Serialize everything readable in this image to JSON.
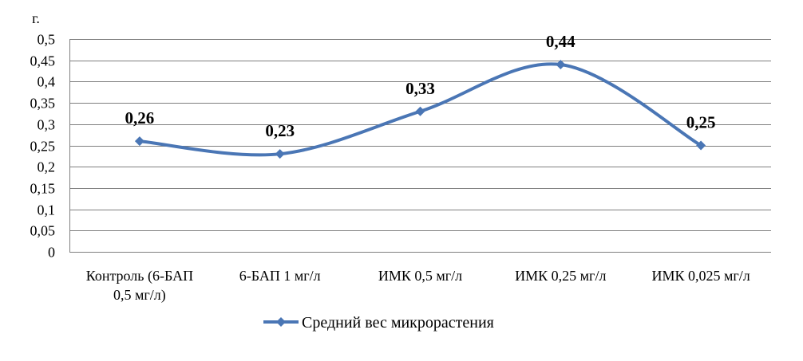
{
  "chart_data": {
    "type": "line",
    "smooth": true,
    "title": "",
    "y_unit": "г.",
    "categories": [
      [
        "Контроль (6-БАП",
        "0,5 мг/л)"
      ],
      [
        "6-БАП  1 мг/л"
      ],
      [
        "ИМК  0,5 мг/л"
      ],
      [
        "ИМК  0,25 мг/л"
      ],
      [
        "ИМК  0,025 мг/л"
      ]
    ],
    "series": [
      {
        "name": "Средний вес микрорастения",
        "color": "#4a76b5",
        "marker": "diamond",
        "values": [
          0.26,
          0.23,
          0.33,
          0.44,
          0.25
        ],
        "labels": [
          "0,26",
          "0,23",
          "0,33",
          "0,44",
          "0,25"
        ]
      }
    ],
    "ylim": [
      0,
      0.5
    ],
    "yticks": [
      0,
      0.05,
      0.1,
      0.15,
      0.2,
      0.25,
      0.3,
      0.35,
      0.4,
      0.45,
      0.5
    ],
    "ytick_labels": [
      "0",
      "0,05",
      "0,1",
      "0,15",
      "0,2",
      "0,25",
      "0,3",
      "0,35",
      "0,4",
      "0,45",
      "0,5"
    ],
    "grid": true,
    "legend_position": "bottom"
  }
}
